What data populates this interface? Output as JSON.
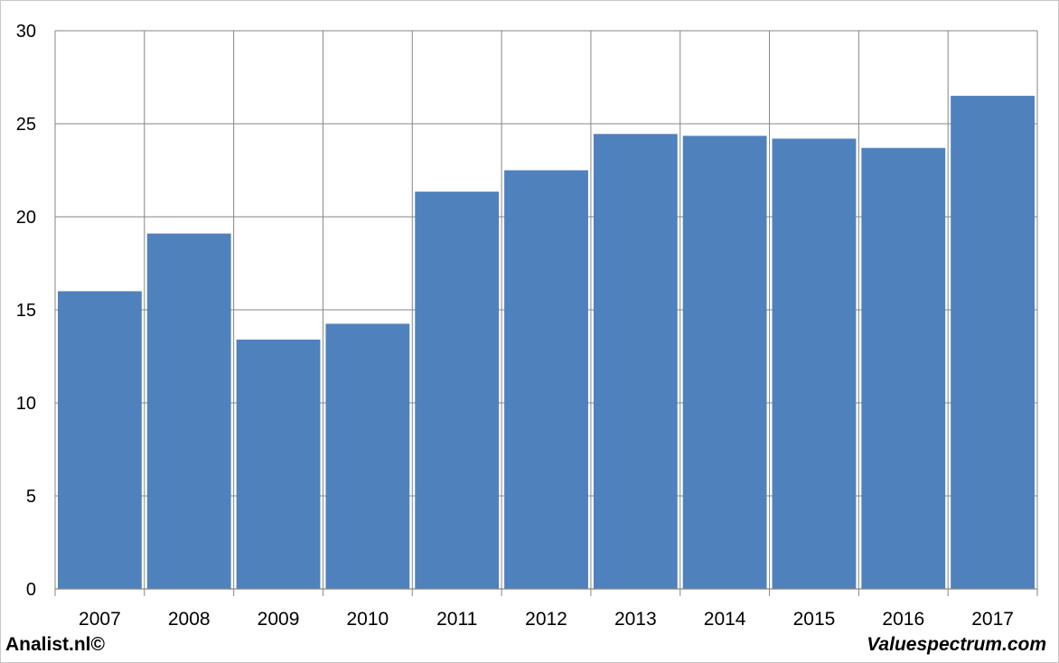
{
  "colors": {
    "bar": "#4f81bd",
    "grid": "#868686",
    "frame": "#c8c8c8",
    "text": "#000000"
  },
  "footer": {
    "left_text": "Analist.nl©",
    "right_text": "Valuespectrum.com"
  },
  "chart_data": {
    "type": "bar",
    "categories": [
      "2007",
      "2008",
      "2009",
      "2010",
      "2011",
      "2012",
      "2013",
      "2014",
      "2015",
      "2016",
      "2017"
    ],
    "values": [
      16.0,
      19.1,
      13.4,
      14.25,
      21.35,
      22.5,
      24.45,
      24.35,
      24.2,
      23.7,
      26.5
    ],
    "ylim": [
      0,
      30
    ],
    "yticks": [
      0,
      5,
      10,
      15,
      20,
      25,
      30
    ],
    "grid": true,
    "legend": "none"
  }
}
